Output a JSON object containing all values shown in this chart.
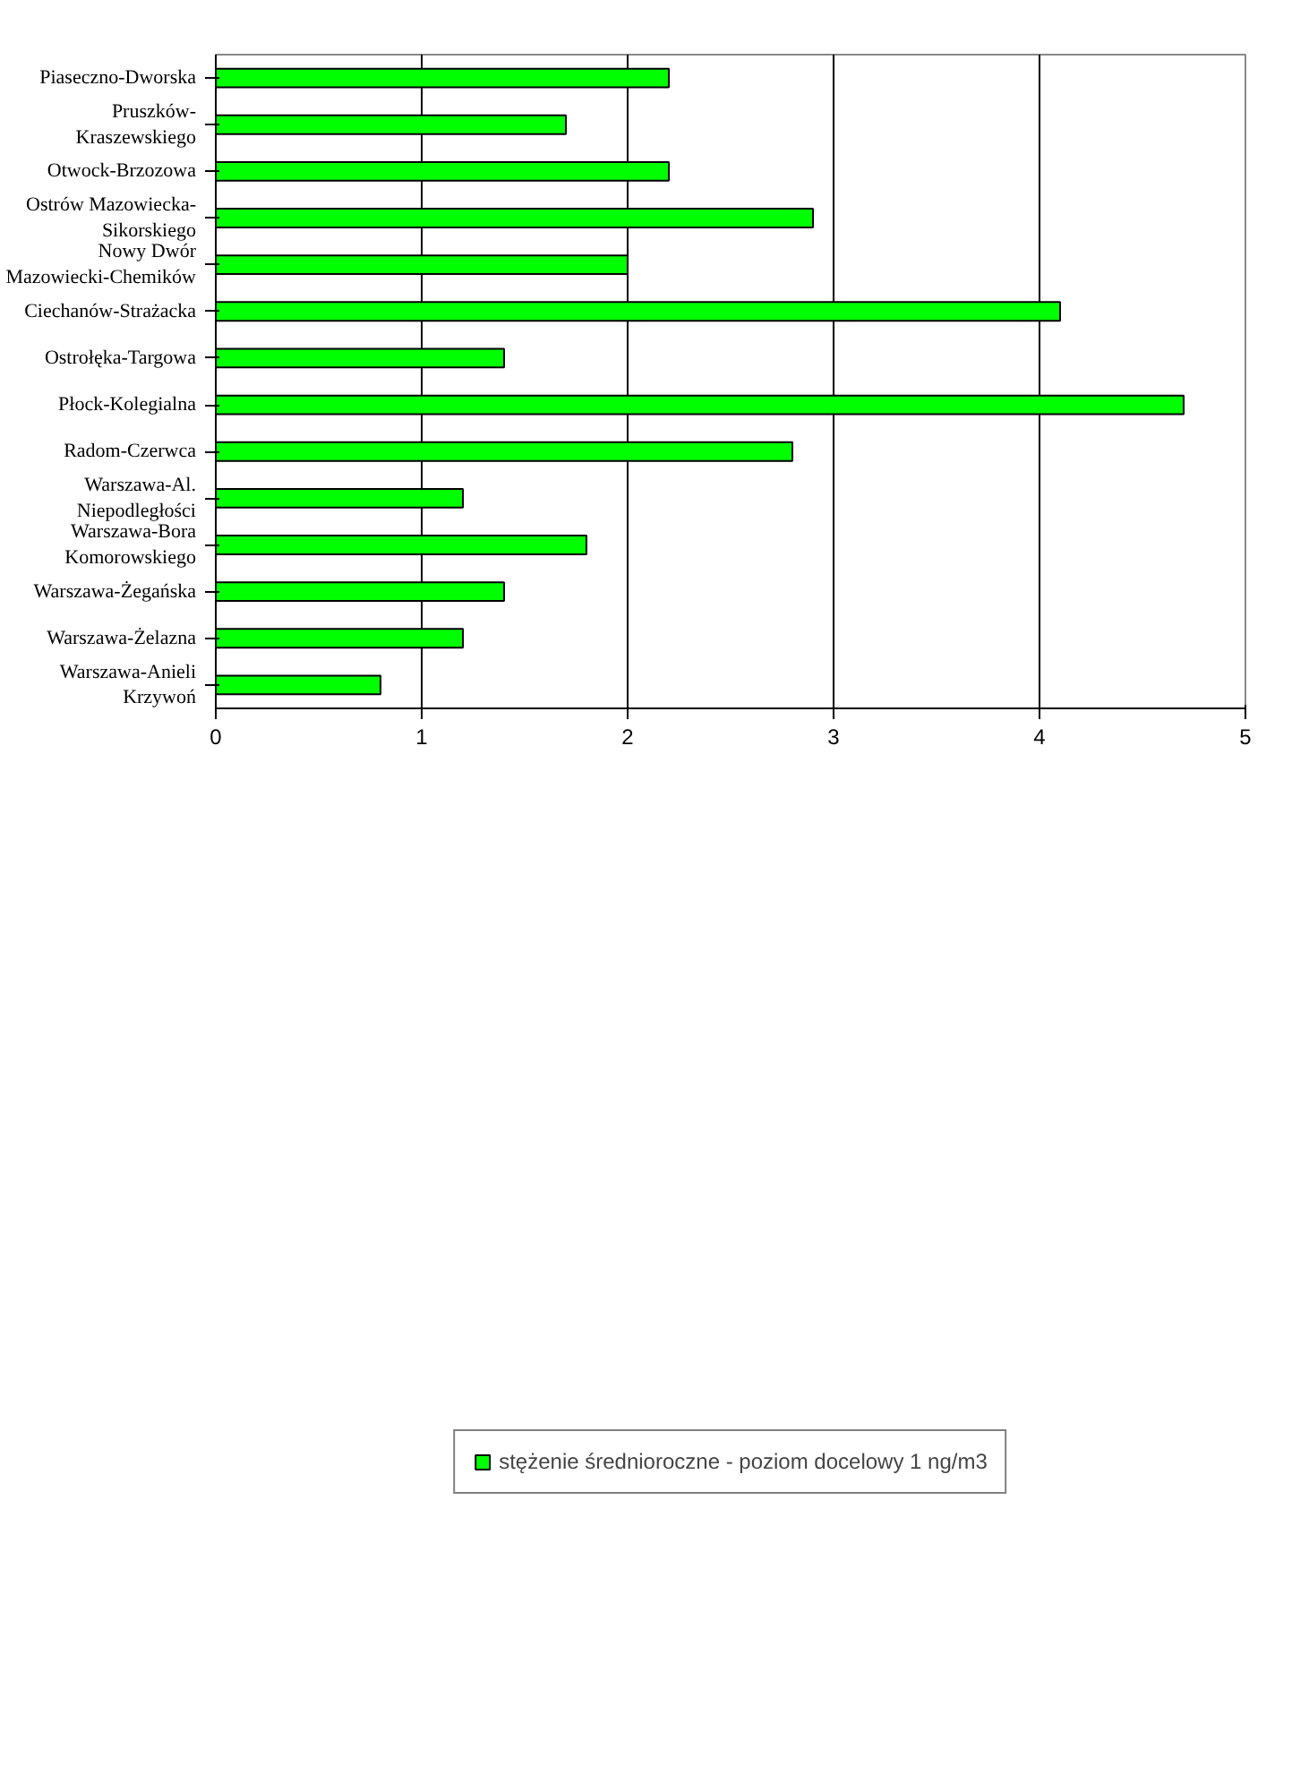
{
  "chart_data": {
    "type": "bar",
    "orientation": "horizontal",
    "categories": [
      "Piaseczno-Dworska",
      "Pruszków-\nKraszewskiego",
      "Otwock-Brzozowa",
      "Ostrów Mazowiecka-\nSikorskiego",
      "Nowy Dwór\nMazowiecki-Chemików",
      "Ciechanów-Strażacka",
      "Ostrołęka-Targowa",
      "Płock-Kolegialna",
      "Radom-Czerwca",
      "Warszawa-Al.\nNiepodległości",
      "Warszawa-Bora\nKomorowskiego",
      "Warszawa-Żegańska",
      "Warszawa-Żelazna",
      "Warszawa-Anieli\nKrzywoń"
    ],
    "series": [
      {
        "name": "stężenie średnioroczne - poziom docelowy 1 ng/m3",
        "color": "#00ff00",
        "values": [
          2.2,
          1.7,
          2.2,
          2.9,
          2.0,
          4.1,
          1.4,
          4.7,
          2.8,
          1.2,
          1.8,
          1.4,
          1.2,
          0.8
        ]
      }
    ],
    "xlim": [
      0,
      5
    ],
    "xticks": [
      0,
      1,
      2,
      3,
      4,
      5
    ],
    "grid": "x",
    "legend": "bottom"
  }
}
